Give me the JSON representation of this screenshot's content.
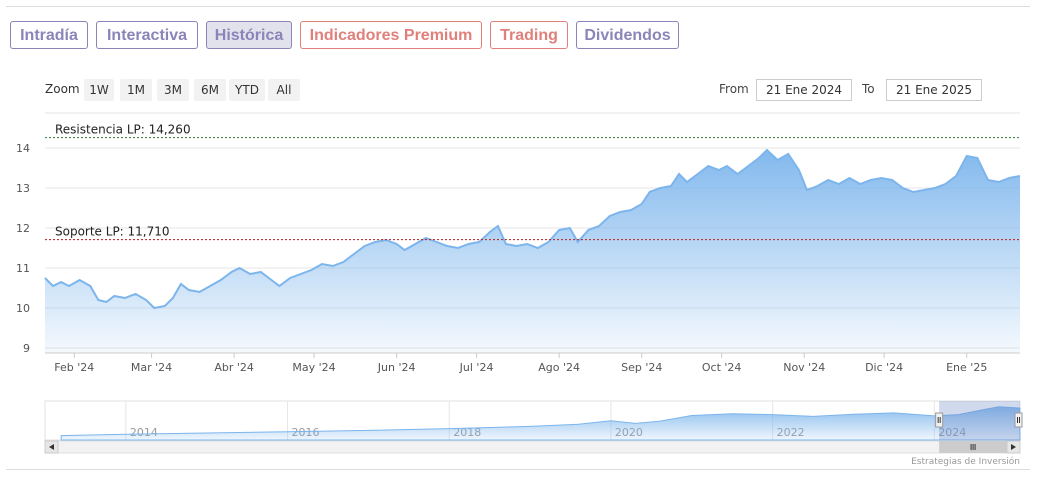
{
  "tabs": [
    {
      "label": "Intradía",
      "color": "#8a84b8",
      "bg": "#ffffff"
    },
    {
      "label": "Interactiva",
      "color": "#8a84b8",
      "bg": "#ffffff"
    },
    {
      "label": "Histórica",
      "color": "#8a84b8",
      "bg": "#e2e2ec"
    },
    {
      "label": "Indicadores Premium",
      "color": "#e0807a",
      "bg": "#ffffff"
    },
    {
      "label": "Trading",
      "color": "#e0807a",
      "bg": "#ffffff"
    },
    {
      "label": "Dividendos",
      "color": "#8a84b8",
      "bg": "#ffffff"
    }
  ],
  "zoom": {
    "label": "Zoom",
    "buttons": [
      "1W",
      "1M",
      "3M",
      "6M",
      "YTD",
      "All"
    ]
  },
  "range": {
    "from_label": "From",
    "from_value": "21 Ene 2024",
    "to_label": "To",
    "to_value": "21 Ene 2025"
  },
  "credit": "Estrategias de Inversión",
  "chart_data": {
    "type": "area",
    "ylim": [
      9,
      14
    ],
    "yticks": [
      9,
      10,
      11,
      12,
      13,
      14
    ],
    "xticks": [
      {
        "label": "Feb '24",
        "date": "2024-02-01"
      },
      {
        "label": "Mar '24",
        "date": "2024-03-01"
      },
      {
        "label": "Abr '24",
        "date": "2024-04-01"
      },
      {
        "label": "May '24",
        "date": "2024-05-01"
      },
      {
        "label": "Jun '24",
        "date": "2024-06-01"
      },
      {
        "label": "Jul '24",
        "date": "2024-07-01"
      },
      {
        "label": "Ago '24",
        "date": "2024-08-01"
      },
      {
        "label": "Sep '24",
        "date": "2024-09-01"
      },
      {
        "label": "Oct '24",
        "date": "2024-10-01"
      },
      {
        "label": "Nov '24",
        "date": "2024-11-01"
      },
      {
        "label": "Dic '24",
        "date": "2024-12-01"
      },
      {
        "label": "Ene '25",
        "date": "2025-01-01"
      }
    ],
    "series": [
      {
        "values": [
          [
            "2024-01-21",
            10.75
          ],
          [
            "2024-01-24",
            10.55
          ],
          [
            "2024-01-27",
            10.65
          ],
          [
            "2024-01-30",
            10.55
          ],
          [
            "2024-02-03",
            10.7
          ],
          [
            "2024-02-07",
            10.55
          ],
          [
            "2024-02-10",
            10.2
          ],
          [
            "2024-02-13",
            10.15
          ],
          [
            "2024-02-16",
            10.3
          ],
          [
            "2024-02-20",
            10.25
          ],
          [
            "2024-02-24",
            10.35
          ],
          [
            "2024-02-28",
            10.2
          ],
          [
            "2024-03-02",
            10.0
          ],
          [
            "2024-03-06",
            10.05
          ],
          [
            "2024-03-09",
            10.25
          ],
          [
            "2024-03-12",
            10.6
          ],
          [
            "2024-03-15",
            10.45
          ],
          [
            "2024-03-19",
            10.4
          ],
          [
            "2024-03-23",
            10.55
          ],
          [
            "2024-03-27",
            10.7
          ],
          [
            "2024-03-31",
            10.9
          ],
          [
            "2024-04-03",
            11.0
          ],
          [
            "2024-04-07",
            10.85
          ],
          [
            "2024-04-11",
            10.9
          ],
          [
            "2024-04-15",
            10.7
          ],
          [
            "2024-04-18",
            10.55
          ],
          [
            "2024-04-22",
            10.75
          ],
          [
            "2024-04-26",
            10.85
          ],
          [
            "2024-04-30",
            10.95
          ],
          [
            "2024-05-04",
            11.1
          ],
          [
            "2024-05-08",
            11.05
          ],
          [
            "2024-05-12",
            11.15
          ],
          [
            "2024-05-16",
            11.35
          ],
          [
            "2024-05-20",
            11.55
          ],
          [
            "2024-05-24",
            11.65
          ],
          [
            "2024-05-28",
            11.7
          ],
          [
            "2024-06-01",
            11.6
          ],
          [
            "2024-06-04",
            11.45
          ],
          [
            "2024-06-08",
            11.6
          ],
          [
            "2024-06-12",
            11.75
          ],
          [
            "2024-06-16",
            11.65
          ],
          [
            "2024-06-20",
            11.55
          ],
          [
            "2024-06-24",
            11.5
          ],
          [
            "2024-06-28",
            11.6
          ],
          [
            "2024-07-02",
            11.65
          ],
          [
            "2024-07-06",
            11.9
          ],
          [
            "2024-07-09",
            12.05
          ],
          [
            "2024-07-12",
            11.6
          ],
          [
            "2024-07-16",
            11.55
          ],
          [
            "2024-07-20",
            11.6
          ],
          [
            "2024-07-24",
            11.5
          ],
          [
            "2024-07-28",
            11.65
          ],
          [
            "2024-08-01",
            11.95
          ],
          [
            "2024-08-05",
            12.0
          ],
          [
            "2024-08-08",
            11.65
          ],
          [
            "2024-08-12",
            11.95
          ],
          [
            "2024-08-16",
            12.05
          ],
          [
            "2024-08-20",
            12.3
          ],
          [
            "2024-08-24",
            12.4
          ],
          [
            "2024-08-28",
            12.45
          ],
          [
            "2024-09-01",
            12.6
          ],
          [
            "2024-09-04",
            12.9
          ],
          [
            "2024-09-08",
            13.0
          ],
          [
            "2024-09-12",
            13.05
          ],
          [
            "2024-09-15",
            13.35
          ],
          [
            "2024-09-18",
            13.15
          ],
          [
            "2024-09-22",
            13.35
          ],
          [
            "2024-09-26",
            13.55
          ],
          [
            "2024-09-30",
            13.45
          ],
          [
            "2024-10-03",
            13.55
          ],
          [
            "2024-10-07",
            13.35
          ],
          [
            "2024-10-11",
            13.55
          ],
          [
            "2024-10-15",
            13.75
          ],
          [
            "2024-10-18",
            13.95
          ],
          [
            "2024-10-22",
            13.7
          ],
          [
            "2024-10-26",
            13.85
          ],
          [
            "2024-10-30",
            13.45
          ],
          [
            "2024-11-02",
            12.95
          ],
          [
            "2024-11-06",
            13.05
          ],
          [
            "2024-11-10",
            13.2
          ],
          [
            "2024-11-14",
            13.1
          ],
          [
            "2024-11-18",
            13.25
          ],
          [
            "2024-11-22",
            13.1
          ],
          [
            "2024-11-26",
            13.2
          ],
          [
            "2024-11-30",
            13.25
          ],
          [
            "2024-12-04",
            13.2
          ],
          [
            "2024-12-08",
            13.0
          ],
          [
            "2024-12-12",
            12.9
          ],
          [
            "2024-12-16",
            12.95
          ],
          [
            "2024-12-20",
            13.0
          ],
          [
            "2024-12-24",
            13.1
          ],
          [
            "2024-12-28",
            13.3
          ],
          [
            "2025-01-01",
            13.8
          ],
          [
            "2025-01-05",
            13.75
          ],
          [
            "2025-01-09",
            13.2
          ],
          [
            "2025-01-13",
            13.15
          ],
          [
            "2025-01-17",
            13.25
          ],
          [
            "2025-01-21",
            13.3
          ]
        ]
      }
    ],
    "annotations": [
      {
        "label": "Resistencia LP: 14,260",
        "value": 14.26,
        "color": "#2e7d32"
      },
      {
        "label": "Soporte LP: 11,710",
        "value": 11.71,
        "color": "#b71c1c"
      }
    ],
    "navigator": {
      "years": [
        "2014",
        "2016",
        "2018",
        "2020",
        "2022",
        "2024"
      ],
      "xlim": [
        2013.0,
        2025.06
      ],
      "selection": [
        2024.06,
        2025.06
      ],
      "values": [
        [
          2013.2,
          7.0
        ],
        [
          2014.0,
          7.3
        ],
        [
          2015.0,
          7.6
        ],
        [
          2016.0,
          7.9
        ],
        [
          2017.0,
          8.2
        ],
        [
          2018.0,
          8.6
        ],
        [
          2019.0,
          9.1
        ],
        [
          2019.6,
          9.6
        ],
        [
          2020.0,
          10.4
        ],
        [
          2020.3,
          9.8
        ],
        [
          2020.6,
          10.3
        ],
        [
          2021.0,
          11.6
        ],
        [
          2021.5,
          12.0
        ],
        [
          2022.0,
          11.8
        ],
        [
          2022.5,
          11.4
        ],
        [
          2023.0,
          11.9
        ],
        [
          2023.5,
          12.2
        ],
        [
          2024.0,
          11.5
        ],
        [
          2024.3,
          11.8
        ],
        [
          2024.6,
          12.9
        ],
        [
          2024.8,
          13.6
        ],
        [
          2025.06,
          13.3
        ]
      ]
    }
  }
}
